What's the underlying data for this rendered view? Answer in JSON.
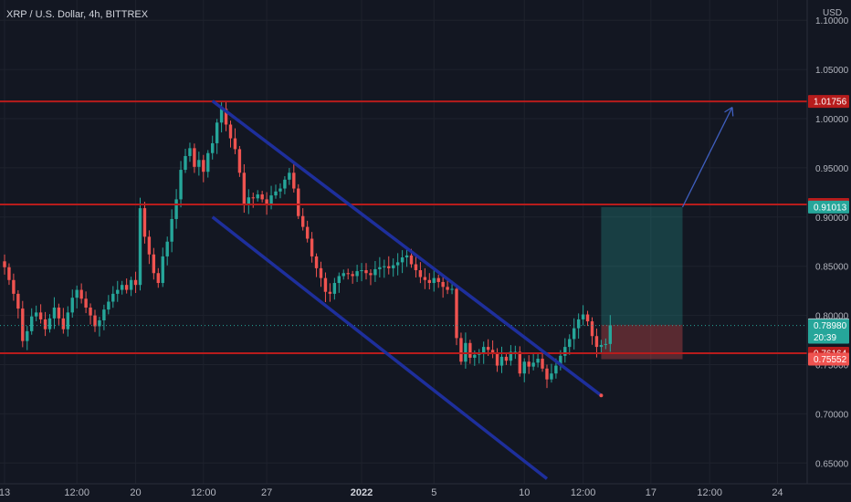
{
  "chart_data": {
    "type": "candlestick",
    "title": "XRP / U.S. Dollar, 4h, BITTREX",
    "currency": "USD",
    "ylim": [
      0.63,
      1.11
    ],
    "y_ticks": [
      "1.10000",
      "1.05000",
      "1.00000",
      "0.95000",
      "0.90000",
      "0.85000",
      "0.80000",
      "0.75000",
      "0.70000",
      "0.65000"
    ],
    "y_tick_values": [
      1.1,
      1.05,
      1.0,
      0.95,
      0.9,
      0.85,
      0.8,
      0.75,
      0.7,
      0.65
    ],
    "x_ticks": [
      {
        "label": "13",
        "bar": 0,
        "bold": false
      },
      {
        "label": "12:00",
        "bar": 16,
        "bold": false
      },
      {
        "label": "20",
        "bar": 29,
        "bold": false
      },
      {
        "label": "12:00",
        "bar": 44,
        "bold": false
      },
      {
        "label": "27",
        "bar": 58,
        "bold": false
      },
      {
        "label": "2022",
        "bar": 79,
        "bold": true
      },
      {
        "label": "5",
        "bar": 95,
        "bold": false
      },
      {
        "label": "10",
        "bar": 115,
        "bold": false
      },
      {
        "label": "12:00",
        "bar": 128,
        "bold": false
      },
      {
        "label": "17",
        "bar": 143,
        "bold": false
      },
      {
        "label": "12:00",
        "bar": 156,
        "bold": false
      },
      {
        "label": "24",
        "bar": 171,
        "bold": false
      }
    ],
    "colors": {
      "background": "#131722",
      "up": "#26a69a",
      "down": "#ef5350",
      "level": "#b71c1c",
      "channel": "#1e2f9c",
      "arrow": "#3f5fbf",
      "grid": "#1e222d",
      "price_line": "#26a69a"
    },
    "closes": [
      0.849,
      0.836,
      0.822,
      0.807,
      0.774,
      0.784,
      0.799,
      0.803,
      0.796,
      0.786,
      0.797,
      0.808,
      0.797,
      0.786,
      0.803,
      0.818,
      0.826,
      0.817,
      0.808,
      0.8,
      0.789,
      0.795,
      0.806,
      0.814,
      0.822,
      0.826,
      0.831,
      0.826,
      0.836,
      0.831,
      0.909,
      0.88,
      0.862,
      0.843,
      0.833,
      0.86,
      0.875,
      0.898,
      0.918,
      0.948,
      0.962,
      0.97,
      0.951,
      0.958,
      0.946,
      0.965,
      0.975,
      0.996,
      1.01,
      0.994,
      0.98,
      0.969,
      0.945,
      0.913,
      0.92,
      0.919,
      0.923,
      0.918,
      0.912,
      0.922,
      0.926,
      0.929,
      0.938,
      0.945,
      0.929,
      0.901,
      0.89,
      0.878,
      0.86,
      0.848,
      0.838,
      0.824,
      0.822,
      0.833,
      0.84,
      0.843,
      0.842,
      0.84,
      0.845,
      0.846,
      0.843,
      0.841,
      0.847,
      0.849,
      0.85,
      0.848,
      0.851,
      0.854,
      0.859,
      0.861,
      0.852,
      0.846,
      0.839,
      0.836,
      0.833,
      0.838,
      0.834,
      0.829,
      0.826,
      0.827,
      0.777,
      0.753,
      0.772,
      0.757,
      0.76,
      0.761,
      0.768,
      0.765,
      0.761,
      0.749,
      0.758,
      0.754,
      0.763,
      0.763,
      0.741,
      0.753,
      0.748,
      0.752,
      0.756,
      0.746,
      0.735,
      0.741,
      0.749,
      0.759,
      0.768,
      0.776,
      0.787,
      0.796,
      0.801,
      0.794,
      0.779,
      0.768,
      0.77,
      0.771,
      0.79
    ],
    "levels": [
      {
        "value": 1.01756,
        "label": "1.01756",
        "color": "#b71c1c"
      },
      {
        "value": 0.91275,
        "label": "0.91275",
        "color": "#b71c1c"
      },
      {
        "value": 0.76164,
        "label": "0.76164",
        "color": "#b71c1c"
      }
    ],
    "price_labels": [
      {
        "label": "0.91013",
        "value": 0.91013,
        "color": "#26a69a"
      },
      {
        "label": "0.79046",
        "value": 0.79046,
        "color": "#d1d4dc"
      },
      {
        "label": "0.78980",
        "value": 0.7898,
        "color": "#26a69a"
      },
      {
        "label": "20:39",
        "value": 0.7778,
        "color": "#26a69a"
      },
      {
        "label": "0.75552",
        "value": 0.75552,
        "color": "#ef5350"
      }
    ],
    "channel": {
      "upper": [
        {
          "bar": 46,
          "price": 1.018
        },
        {
          "bar": 132,
          "price": 0.7187
        }
      ],
      "lower": [
        {
          "bar": 46,
          "price": 0.9
        },
        {
          "bar": 120,
          "price": 0.634
        }
      ]
    },
    "position": {
      "start_bar": 132,
      "end_bar": 150,
      "entry": 0.79046,
      "target": 0.91013,
      "stop": 0.75552
    },
    "arrow": {
      "from_bar": 150,
      "from_price": 0.91013,
      "to_bar": 161,
      "to_price": 1.0116
    }
  }
}
